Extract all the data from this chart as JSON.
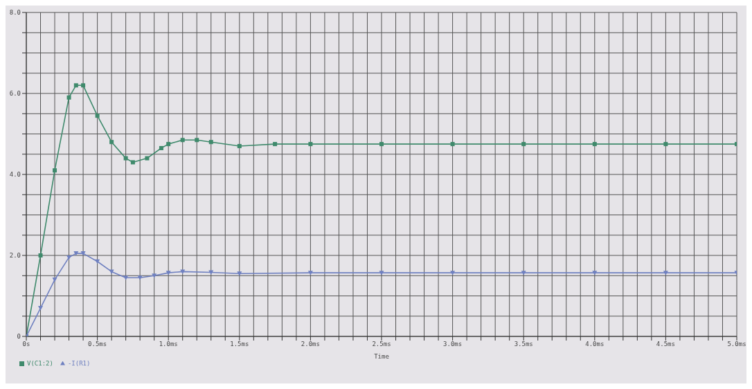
{
  "chart_data": {
    "type": "line",
    "xlabel": "Time",
    "xlim": [
      0,
      5
    ],
    "ylim": [
      0,
      8
    ],
    "xticks": [
      {
        "value": 0,
        "label": "0s"
      },
      {
        "value": 0.1,
        "label": null
      },
      {
        "value": 0.2,
        "label": null
      },
      {
        "value": 0.3,
        "label": null
      },
      {
        "value": 0.4,
        "label": null
      },
      {
        "value": 0.5,
        "label": "0.5ms"
      },
      {
        "value": 0.6,
        "label": null
      },
      {
        "value": 0.7,
        "label": null
      },
      {
        "value": 0.8,
        "label": null
      },
      {
        "value": 0.9,
        "label": null
      },
      {
        "value": 1,
        "label": "1.0ms"
      },
      {
        "value": 1.1,
        "label": null
      },
      {
        "value": 1.2,
        "label": null
      },
      {
        "value": 1.3,
        "label": null
      },
      {
        "value": 1.4,
        "label": null
      },
      {
        "value": 1.5,
        "label": "1.5ms"
      },
      {
        "value": 1.6,
        "label": null
      },
      {
        "value": 1.7,
        "label": null
      },
      {
        "value": 1.8,
        "label": null
      },
      {
        "value": 1.9,
        "label": null
      },
      {
        "value": 2,
        "label": "2.0ms"
      },
      {
        "value": 2.1,
        "label": null
      },
      {
        "value": 2.2,
        "label": null
      },
      {
        "value": 2.3,
        "label": null
      },
      {
        "value": 2.4,
        "label": null
      },
      {
        "value": 2.5,
        "label": "2.5ms"
      },
      {
        "value": 2.6,
        "label": null
      },
      {
        "value": 2.7,
        "label": null
      },
      {
        "value": 2.8,
        "label": null
      },
      {
        "value": 2.9,
        "label": null
      },
      {
        "value": 3,
        "label": "3.0ms"
      },
      {
        "value": 3.1,
        "label": null
      },
      {
        "value": 3.2,
        "label": null
      },
      {
        "value": 3.3,
        "label": null
      },
      {
        "value": 3.4,
        "label": null
      },
      {
        "value": 3.5,
        "label": "3.5ms"
      },
      {
        "value": 3.6,
        "label": null
      },
      {
        "value": 3.7,
        "label": null
      },
      {
        "value": 3.8,
        "label": null
      },
      {
        "value": 3.9,
        "label": null
      },
      {
        "value": 4,
        "label": "4.0ms"
      },
      {
        "value": 4.1,
        "label": null
      },
      {
        "value": 4.2,
        "label": null
      },
      {
        "value": 4.3,
        "label": null
      },
      {
        "value": 4.4,
        "label": null
      },
      {
        "value": 4.5,
        "label": "4.5ms"
      },
      {
        "value": 4.6,
        "label": null
      },
      {
        "value": 4.7,
        "label": null
      },
      {
        "value": 4.8,
        "label": null
      },
      {
        "value": 4.9,
        "label": null
      },
      {
        "value": 5,
        "label": "5.0ms"
      }
    ],
    "yticks": [
      0,
      {
        "value": 0.5,
        "label": null
      },
      {
        "value": 1,
        "label": null
      },
      {
        "value": 1.5,
        "label": null
      },
      {
        "value": 2,
        "label": "2.0"
      },
      {
        "value": 2.5,
        "label": null
      },
      {
        "value": 3,
        "label": null
      },
      {
        "value": 3.5,
        "label": null
      },
      {
        "value": 4,
        "label": "4.0"
      },
      {
        "value": 4.5,
        "label": null
      },
      {
        "value": 5,
        "label": null
      },
      {
        "value": 5.5,
        "label": null
      },
      {
        "value": 6,
        "label": "6.0"
      },
      {
        "value": 6.5,
        "label": null
      },
      {
        "value": 7,
        "label": null
      },
      {
        "value": 7.5,
        "label": null
      },
      {
        "value": 8,
        "label": "8.0"
      }
    ],
    "grid": true,
    "legend": "bottom left",
    "line_style": "solid",
    "series": [
      {
        "name": "V(C1:2)",
        "color": "#3f8a6c",
        "marker": "square",
        "x": [
          0,
          0.1,
          0.2,
          0.3,
          0.35,
          0.4,
          0.5,
          0.6,
          0.7,
          0.75,
          0.85,
          0.95,
          1.0,
          1.1,
          1.2,
          1.3,
          1.5,
          1.75,
          2.0,
          2.5,
          3.0,
          3.5,
          4.0,
          4.5,
          5.0
        ],
        "values": [
          0,
          2.0,
          4.1,
          5.9,
          6.2,
          6.2,
          5.45,
          4.8,
          4.4,
          4.3,
          4.4,
          4.65,
          4.75,
          4.85,
          4.85,
          4.8,
          4.7,
          4.75,
          4.75,
          4.75,
          4.75,
          4.75,
          4.75,
          4.75,
          4.75
        ]
      },
      {
        "name": "-I(R1)",
        "color": "#6f80c0",
        "marker": "triangle",
        "x": [
          0,
          0.1,
          0.2,
          0.3,
          0.35,
          0.4,
          0.5,
          0.6,
          0.7,
          0.8,
          0.9,
          1.0,
          1.1,
          1.3,
          1.5,
          2.0,
          2.5,
          3.0,
          3.5,
          4.0,
          4.5,
          5.0
        ],
        "values": [
          0,
          0.7,
          1.4,
          1.95,
          2.05,
          2.05,
          1.85,
          1.6,
          1.45,
          1.45,
          1.5,
          1.57,
          1.6,
          1.58,
          1.55,
          1.57,
          1.57,
          1.57,
          1.57,
          1.57,
          1.57,
          1.57
        ]
      }
    ]
  }
}
